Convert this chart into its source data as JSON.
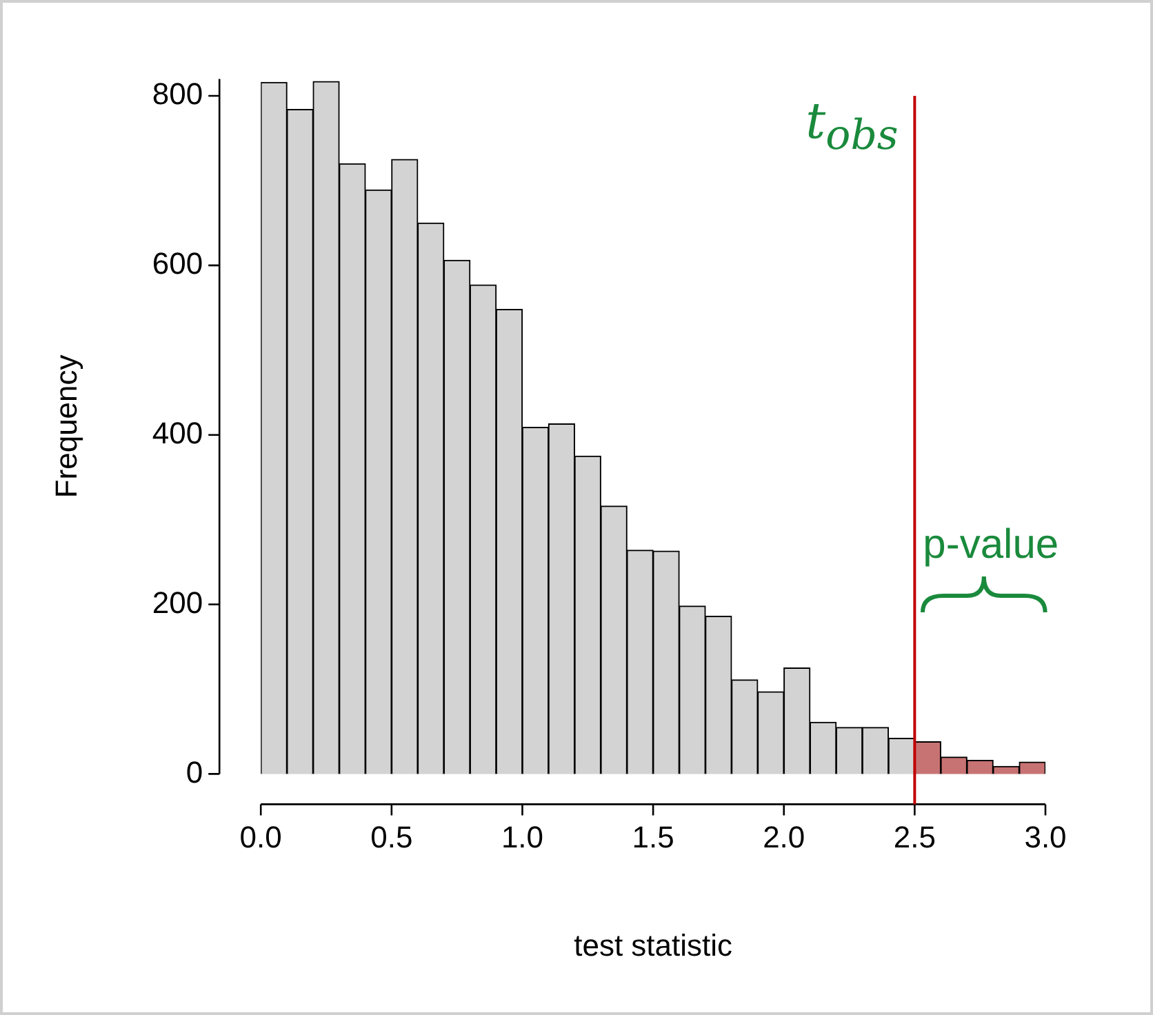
{
  "chart_data": {
    "type": "histogram",
    "xlabel": "test statistic",
    "ylabel": "Frequency",
    "bins": [
      0,
      0.1,
      0.2,
      0.3,
      0.4,
      0.5,
      0.6,
      0.7,
      0.8,
      0.9,
      1.0,
      1.1,
      1.2,
      1.3,
      1.4,
      1.5,
      1.6,
      1.7,
      1.8,
      1.9,
      2.0,
      2.1,
      2.2,
      2.3,
      2.4,
      2.5,
      2.6,
      2.7,
      2.8,
      2.9,
      3.0
    ],
    "values": [
      816,
      784,
      817,
      720,
      689,
      725,
      650,
      606,
      577,
      548,
      409,
      413,
      375,
      316,
      264,
      263,
      198,
      186,
      111,
      97,
      125,
      61,
      55,
      55,
      42,
      38,
      20,
      16,
      9,
      14
    ],
    "colors": [
      "#d3d3d3",
      "#d3d3d3",
      "#d3d3d3",
      "#d3d3d3",
      "#d3d3d3",
      "#d3d3d3",
      "#d3d3d3",
      "#d3d3d3",
      "#d3d3d3",
      "#d3d3d3",
      "#d3d3d3",
      "#d3d3d3",
      "#d3d3d3",
      "#d3d3d3",
      "#d3d3d3",
      "#d3d3d3",
      "#d3d3d3",
      "#d3d3d3",
      "#d3d3d3",
      "#d3d3d3",
      "#d3d3d3",
      "#d3d3d3",
      "#d3d3d3",
      "#d3d3d3",
      "#d3d3d3",
      "#c87373",
      "#c87373",
      "#c87373",
      "#c87373",
      "#c87373"
    ],
    "xlim": [
      0,
      3
    ],
    "xticks": [
      {
        "value": 0,
        "label": "0.0"
      },
      {
        "value": 0.5,
        "label": "0.5"
      },
      {
        "value": 1,
        "label": "1.0"
      },
      {
        "value": 1.5,
        "label": "1.5"
      },
      {
        "value": 2,
        "label": "2.0"
      },
      {
        "value": 2.5,
        "label": "2.5"
      },
      {
        "value": 3,
        "label": "3.0"
      }
    ],
    "ylim": [
      0,
      820
    ],
    "yticks": [
      0,
      200,
      400,
      600,
      800
    ],
    "ref_lines": [
      {
        "axis": "x",
        "value": 2.5,
        "label": "t$_{obs}$",
        "color": "#c00000"
      }
    ],
    "annotations": [
      "p-value"
    ],
    "grid": false,
    "legend": false
  }
}
